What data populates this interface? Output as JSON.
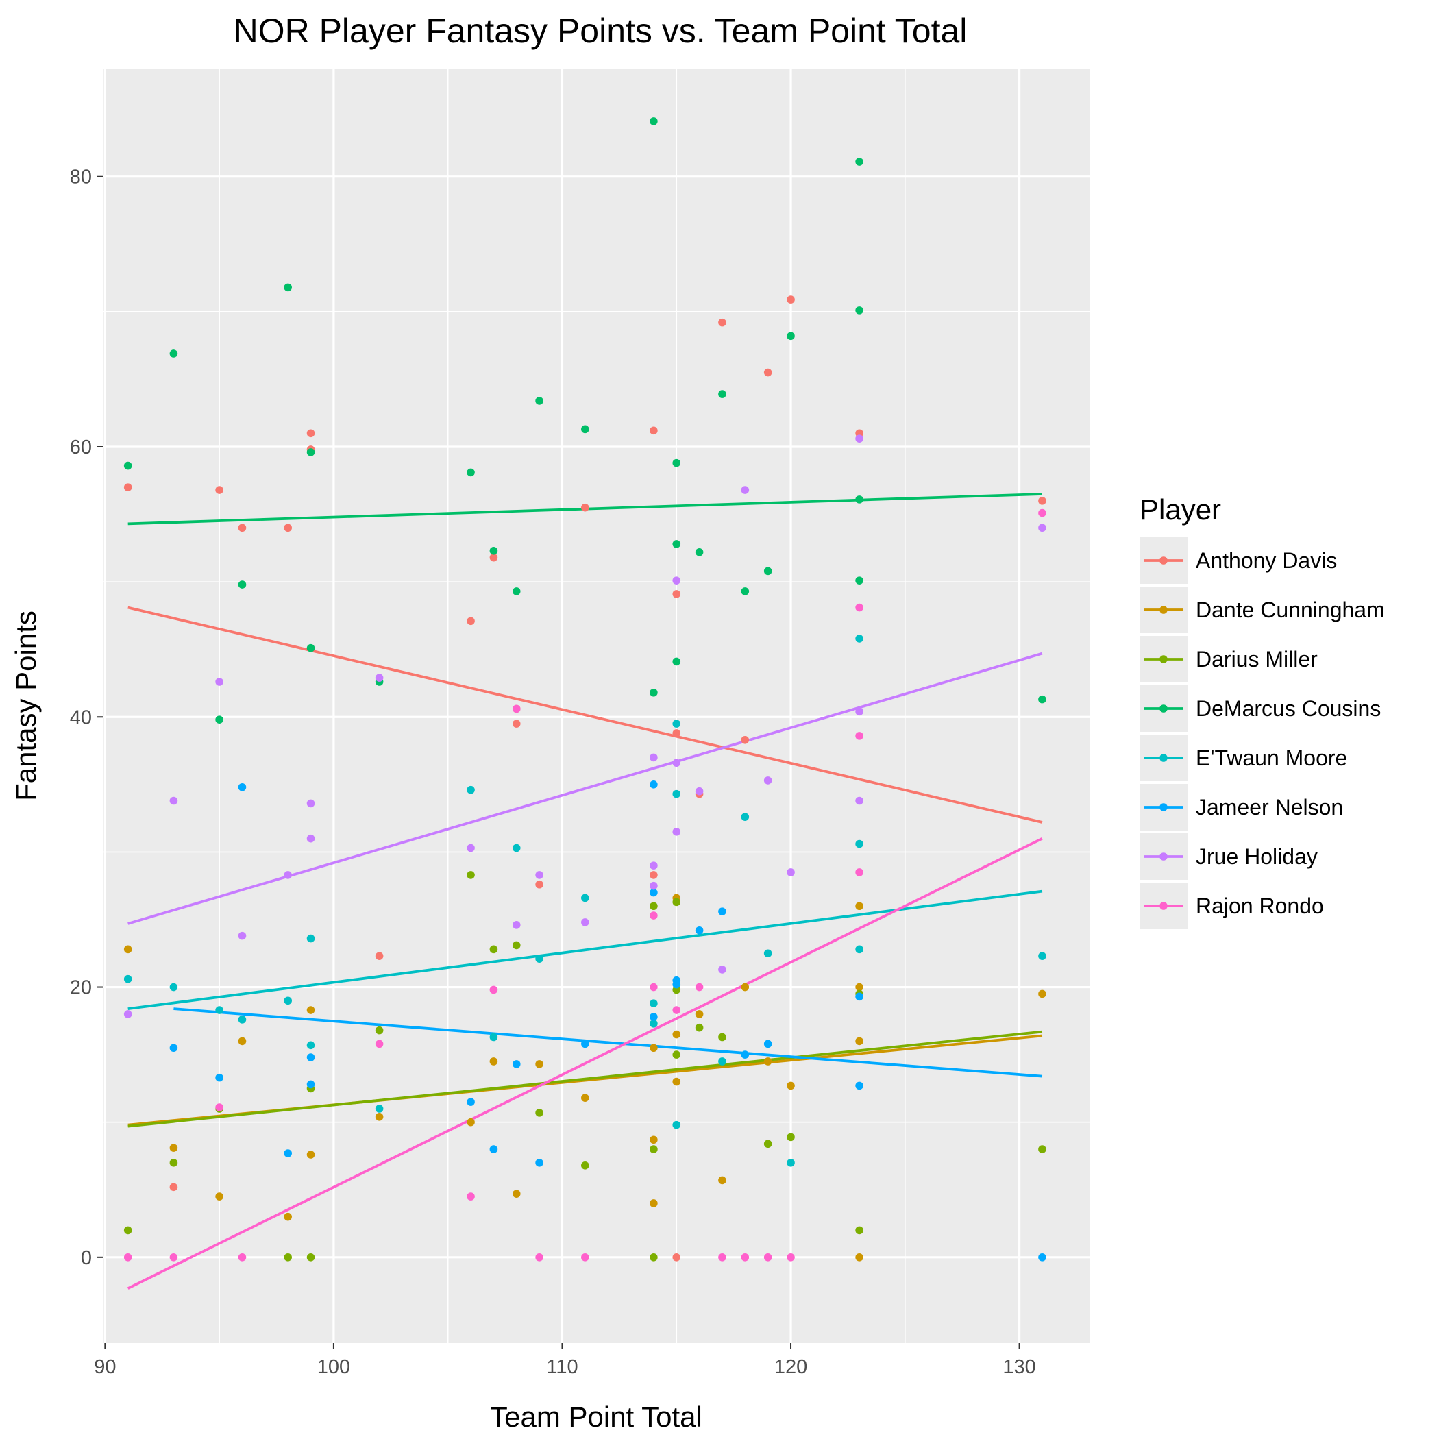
{
  "chart_data": {
    "type": "scatter",
    "title": "NOR Player Fantasy Points vs. Team Point Total",
    "xlabel": "Team Point Total",
    "ylabel": "Fantasy Points",
    "xlim": [
      89.9,
      133.1
    ],
    "ylim": [
      -6.35,
      88.0
    ],
    "x_ticks": [
      90,
      100,
      110,
      120,
      130
    ],
    "y_ticks": [
      0,
      20,
      40,
      60,
      80
    ],
    "grid": true,
    "legend": {
      "title": "Player",
      "position": "right"
    },
    "series": [
      {
        "name": "Anthony Davis",
        "color": "#F8766D",
        "trend": [
          [
            91,
            48.1
          ],
          [
            131,
            32.2
          ]
        ],
        "points": [
          [
            91,
            57
          ],
          [
            93,
            5.2
          ],
          [
            95,
            56.8
          ],
          [
            96,
            54
          ],
          [
            98,
            54
          ],
          [
            99,
            61
          ],
          [
            99,
            59.8
          ],
          [
            102,
            22.3
          ],
          [
            106,
            47.1
          ],
          [
            107,
            51.8
          ],
          [
            108,
            40.6
          ],
          [
            108,
            39.5
          ],
          [
            109,
            27.6
          ],
          [
            111,
            55.5
          ],
          [
            114,
            61.2
          ],
          [
            114,
            28.3
          ],
          [
            115,
            38.8
          ],
          [
            115,
            49.1
          ],
          [
            115,
            0
          ],
          [
            116,
            34.3
          ],
          [
            117,
            69.2
          ],
          [
            118,
            38.3
          ],
          [
            119,
            65.5
          ],
          [
            120,
            70.9
          ],
          [
            123,
            61
          ],
          [
            131,
            56
          ]
        ]
      },
      {
        "name": "Dante Cunningham",
        "color": "#CD9600",
        "trend": [
          [
            91,
            9.8
          ],
          [
            131,
            16.4
          ]
        ],
        "points": [
          [
            91,
            22.8
          ],
          [
            93,
            8.1
          ],
          [
            95,
            4.5
          ],
          [
            96,
            16
          ],
          [
            98,
            3
          ],
          [
            99,
            7.6
          ],
          [
            99,
            18.3
          ],
          [
            102,
            10.4
          ],
          [
            106,
            10
          ],
          [
            107,
            14.5
          ],
          [
            108,
            4.7
          ],
          [
            109,
            14.3
          ],
          [
            111,
            11.8
          ],
          [
            114,
            8.7
          ],
          [
            114,
            4
          ],
          [
            114,
            15.5
          ],
          [
            115,
            26.6
          ],
          [
            115,
            16.5
          ],
          [
            115,
            13
          ],
          [
            116,
            18
          ],
          [
            117,
            5.7
          ],
          [
            118,
            20
          ],
          [
            119,
            14.5
          ],
          [
            120,
            12.7
          ],
          [
            123,
            26
          ],
          [
            123,
            20
          ],
          [
            123,
            16
          ],
          [
            123,
            0
          ],
          [
            131,
            19.5
          ]
        ]
      },
      {
        "name": "Darius Miller",
        "color": "#7CAE00",
        "trend": [
          [
            91,
            9.7
          ],
          [
            131,
            16.7
          ]
        ],
        "points": [
          [
            91,
            2
          ],
          [
            93,
            7
          ],
          [
            95,
            11
          ],
          [
            98,
            0
          ],
          [
            99,
            0
          ],
          [
            99,
            12.5
          ],
          [
            102,
            16.8
          ],
          [
            106,
            28.3
          ],
          [
            107,
            22.8
          ],
          [
            108,
            23.1
          ],
          [
            109,
            10.7
          ],
          [
            111,
            6.8
          ],
          [
            114,
            26
          ],
          [
            114,
            8
          ],
          [
            114,
            0
          ],
          [
            115,
            26.3
          ],
          [
            115,
            19.8
          ],
          [
            115,
            15
          ],
          [
            116,
            17
          ],
          [
            117,
            16.3
          ],
          [
            119,
            8.4
          ],
          [
            120,
            8.9
          ],
          [
            123,
            19.5
          ],
          [
            123,
            2
          ],
          [
            131,
            8
          ]
        ]
      },
      {
        "name": "DeMarcus Cousins",
        "color": "#00BE67",
        "trend": [
          [
            91,
            54.3
          ],
          [
            131,
            56.5
          ]
        ],
        "points": [
          [
            91,
            58.6
          ],
          [
            93,
            66.9
          ],
          [
            95,
            39.8
          ],
          [
            96,
            49.8
          ],
          [
            98,
            71.8
          ],
          [
            99,
            59.6
          ],
          [
            99,
            45.1
          ],
          [
            102,
            42.6
          ],
          [
            106,
            58.1
          ],
          [
            107,
            52.3
          ],
          [
            108,
            49.3
          ],
          [
            109,
            63.4
          ],
          [
            111,
            61.3
          ],
          [
            114,
            84.1
          ],
          [
            114,
            41.8
          ],
          [
            115,
            58.8
          ],
          [
            115,
            52.8
          ],
          [
            115,
            44.1
          ],
          [
            116,
            52.2
          ],
          [
            117,
            63.9
          ],
          [
            118,
            49.3
          ],
          [
            119,
            50.8
          ],
          [
            120,
            68.2
          ],
          [
            123,
            81.1
          ],
          [
            123,
            70.1
          ],
          [
            123,
            56.1
          ],
          [
            123,
            50.1
          ],
          [
            131,
            41.3
          ]
        ]
      },
      {
        "name": "E'Twaun Moore",
        "color": "#00BFC4",
        "trend": [
          [
            91,
            18.4
          ],
          [
            131,
            27.1
          ]
        ],
        "points": [
          [
            91,
            20.6
          ],
          [
            93,
            20
          ],
          [
            95,
            18.3
          ],
          [
            96,
            17.6
          ],
          [
            98,
            19
          ],
          [
            99,
            23.6
          ],
          [
            99,
            15.7
          ],
          [
            102,
            11
          ],
          [
            106,
            34.6
          ],
          [
            107,
            16.3
          ],
          [
            108,
            30.3
          ],
          [
            109,
            22.1
          ],
          [
            111,
            26.6
          ],
          [
            114,
            18.8
          ],
          [
            114,
            17.3
          ],
          [
            115,
            39.5
          ],
          [
            115,
            34.3
          ],
          [
            115,
            9.8
          ],
          [
            117,
            14.5
          ],
          [
            118,
            32.6
          ],
          [
            119,
            22.5
          ],
          [
            120,
            7
          ],
          [
            123,
            45.8
          ],
          [
            123,
            30.6
          ],
          [
            123,
            22.8
          ],
          [
            131,
            22.3
          ]
        ]
      },
      {
        "name": "Jameer Nelson",
        "color": "#00A9FF",
        "trend": [
          [
            93,
            18.4
          ],
          [
            131,
            13.4
          ]
        ],
        "points": [
          [
            93,
            15.5
          ],
          [
            95,
            13.3
          ],
          [
            96,
            34.8
          ],
          [
            98,
            7.7
          ],
          [
            99,
            14.8
          ],
          [
            99,
            12.8
          ],
          [
            106,
            11.5
          ],
          [
            107,
            8
          ],
          [
            108,
            14.3
          ],
          [
            109,
            7
          ],
          [
            111,
            15.8
          ],
          [
            114,
            35
          ],
          [
            114,
            27
          ],
          [
            114,
            17.8
          ],
          [
            115,
            20.5
          ],
          [
            115,
            20.2
          ],
          [
            116,
            24.2
          ],
          [
            117,
            25.6
          ],
          [
            118,
            15
          ],
          [
            119,
            15.8
          ],
          [
            123,
            19.3
          ],
          [
            123,
            12.7
          ],
          [
            131,
            0
          ]
        ]
      },
      {
        "name": "Jrue Holiday",
        "color": "#C77CFF",
        "trend": [
          [
            91,
            24.7
          ],
          [
            131,
            44.7
          ]
        ],
        "points": [
          [
            91,
            18
          ],
          [
            93,
            33.8
          ],
          [
            95,
            42.6
          ],
          [
            96,
            23.8
          ],
          [
            98,
            28.3
          ],
          [
            99,
            33.6
          ],
          [
            99,
            31
          ],
          [
            102,
            42.9
          ],
          [
            106,
            30.3
          ],
          [
            108,
            24.6
          ],
          [
            109,
            28.3
          ],
          [
            111,
            24.8
          ],
          [
            114,
            37
          ],
          [
            114,
            29
          ],
          [
            114,
            27.5
          ],
          [
            115,
            50.1
          ],
          [
            115,
            36.6
          ],
          [
            115,
            31.5
          ],
          [
            116,
            34.5
          ],
          [
            117,
            21.3
          ],
          [
            118,
            56.8
          ],
          [
            119,
            35.3
          ],
          [
            120,
            28.5
          ],
          [
            123,
            60.6
          ],
          [
            123,
            40.4
          ],
          [
            123,
            33.8
          ],
          [
            131,
            54
          ]
        ]
      },
      {
        "name": "Rajon Rondo",
        "color": "#FF61CC",
        "trend": [
          [
            91,
            -2.3
          ],
          [
            131,
            31.0
          ]
        ],
        "points": [
          [
            91,
            0
          ],
          [
            93,
            0
          ],
          [
            95,
            11.1
          ],
          [
            96,
            0
          ],
          [
            102,
            15.8
          ],
          [
            106,
            4.5
          ],
          [
            107,
            19.8
          ],
          [
            108,
            40.6
          ],
          [
            109,
            0
          ],
          [
            111,
            0
          ],
          [
            114,
            25.3
          ],
          [
            114,
            20
          ],
          [
            115,
            18.3
          ],
          [
            116,
            20
          ],
          [
            117,
            0
          ],
          [
            118,
            0
          ],
          [
            119,
            0
          ],
          [
            120,
            0
          ],
          [
            123,
            48.1
          ],
          [
            123,
            38.6
          ],
          [
            123,
            28.5
          ],
          [
            131,
            55.1
          ]
        ]
      }
    ]
  }
}
